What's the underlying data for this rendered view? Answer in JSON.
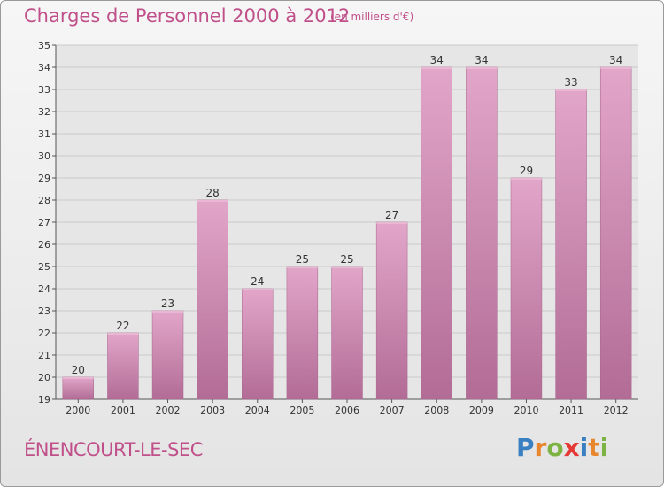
{
  "title": "Charges de Personnel 2000 à 2012",
  "subtitle": "(en milliers d'€)",
  "commune": "ÉNENCOURT-LE-SEC",
  "logo": {
    "text": "Proxiti",
    "letters": [
      "P",
      "r",
      "o",
      "x",
      "i",
      "t",
      "i"
    ],
    "colors": [
      "#3a7fc1",
      "#e8862d",
      "#7cb342",
      "#e53935",
      "#3a7fc1",
      "#e8862d",
      "#7cb342"
    ]
  },
  "colors": {
    "bar": "#d58fb8",
    "bar_dark": "#b56e98",
    "title": "#c0508a",
    "grid": "#c8c8c8"
  },
  "chart_data": {
    "type": "bar",
    "title": "Charges de Personnel 2000 à 2012",
    "categories": [
      "2000",
      "2001",
      "2002",
      "2003",
      "2004",
      "2005",
      "2006",
      "2007",
      "2008",
      "2009",
      "2010",
      "2011",
      "2012"
    ],
    "values": [
      20,
      22,
      23,
      28,
      24,
      25,
      25,
      27,
      34,
      34,
      29,
      33,
      34
    ],
    "ylim": [
      19,
      35
    ],
    "yticks": [
      19,
      20,
      21,
      22,
      23,
      24,
      25,
      26,
      27,
      28,
      29,
      30,
      31,
      32,
      33,
      34,
      35
    ],
    "grid": true,
    "data_labels": true
  }
}
